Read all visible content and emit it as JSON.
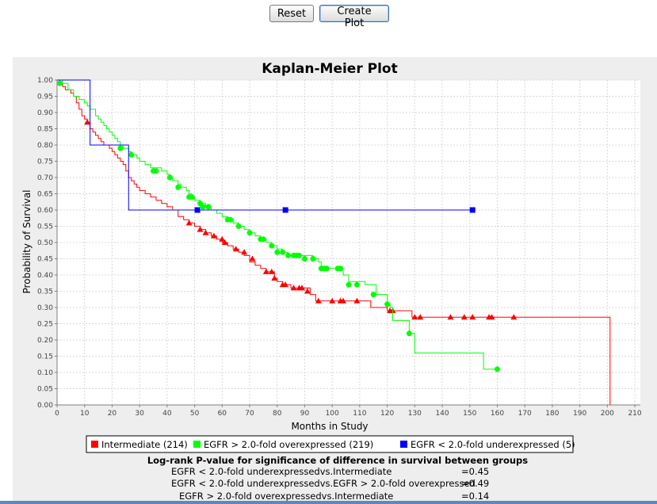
{
  "controls": {
    "reset_label": "Reset",
    "create_label": "Create Plot"
  },
  "stats": {
    "title": "Log-rank P-value for significance of difference in survival between groups",
    "rows": [
      {
        "label": "EGFR < 2.0-fold underexpressedvs.Intermediate",
        "value": "=0.45"
      },
      {
        "label": "EGFR < 2.0-fold underexpressedvs.EGFR > 2.0-fold overexpressed",
        "value": "=0.49"
      },
      {
        "label": "EGFR > 2.0-fold overexpressedvs.Intermediate",
        "value": "=0.14"
      }
    ]
  },
  "chart_data": {
    "type": "line",
    "title": "Kaplan-Meier Plot",
    "xlabel": "Months in Study",
    "ylabel": "Probability of Survival",
    "xlim": [
      0,
      212
    ],
    "ylim": [
      0,
      1.0
    ],
    "xticks": [
      0,
      10,
      20,
      30,
      40,
      50,
      60,
      70,
      80,
      90,
      100,
      110,
      120,
      130,
      140,
      150,
      160,
      170,
      180,
      190,
      200,
      210
    ],
    "yticks": [
      0,
      0.05,
      0.1,
      0.15,
      0.2,
      0.25,
      0.3,
      0.35,
      0.4,
      0.45,
      0.5,
      0.55,
      0.6,
      0.65,
      0.7,
      0.75,
      0.8,
      0.85,
      0.9,
      0.95,
      1.0
    ],
    "grid": true,
    "legend_position": "bottom",
    "series": [
      {
        "name": "Intermediate (214)",
        "color": "#ff0000",
        "marker": "triangle",
        "steps": [
          [
            0,
            1.0
          ],
          [
            1,
            0.99
          ],
          [
            2,
            0.98
          ],
          [
            3,
            0.97
          ],
          [
            5,
            0.96
          ],
          [
            6,
            0.95
          ],
          [
            7,
            0.93
          ],
          [
            8,
            0.91
          ],
          [
            9,
            0.89
          ],
          [
            10,
            0.88
          ],
          [
            11,
            0.87
          ],
          [
            12,
            0.85
          ],
          [
            13,
            0.84
          ],
          [
            14,
            0.83
          ],
          [
            15,
            0.82
          ],
          [
            16,
            0.81
          ],
          [
            17,
            0.8
          ],
          [
            19,
            0.79
          ],
          [
            20,
            0.78
          ],
          [
            21,
            0.77
          ],
          [
            22,
            0.76
          ],
          [
            23,
            0.75
          ],
          [
            24,
            0.74
          ],
          [
            25,
            0.72
          ],
          [
            26,
            0.7
          ],
          [
            27,
            0.69
          ],
          [
            28,
            0.68
          ],
          [
            29,
            0.67
          ],
          [
            30,
            0.66
          ],
          [
            32,
            0.65
          ],
          [
            34,
            0.64
          ],
          [
            36,
            0.63
          ],
          [
            38,
            0.62
          ],
          [
            40,
            0.61
          ],
          [
            42,
            0.6
          ],
          [
            44,
            0.58
          ],
          [
            46,
            0.57
          ],
          [
            48,
            0.56
          ],
          [
            50,
            0.55
          ],
          [
            52,
            0.54
          ],
          [
            54,
            0.53
          ],
          [
            56,
            0.52
          ],
          [
            58,
            0.51
          ],
          [
            60,
            0.5
          ],
          [
            62,
            0.49
          ],
          [
            64,
            0.48
          ],
          [
            66,
            0.47
          ],
          [
            68,
            0.46
          ],
          [
            70,
            0.44
          ],
          [
            72,
            0.43
          ],
          [
            74,
            0.42
          ],
          [
            76,
            0.41
          ],
          [
            79,
            0.39
          ],
          [
            80,
            0.38
          ],
          [
            82,
            0.37
          ],
          [
            85,
            0.36
          ],
          [
            88,
            0.36
          ],
          [
            92,
            0.34
          ],
          [
            94,
            0.32
          ],
          [
            100,
            0.32
          ],
          [
            112,
            0.32
          ],
          [
            114,
            0.3
          ],
          [
            118,
            0.3
          ],
          [
            120,
            0.29
          ],
          [
            129,
            0.27
          ],
          [
            170,
            0.27
          ],
          [
            200,
            0.27
          ],
          [
            201,
            0.0
          ]
        ],
        "censored": [
          [
            11,
            0.87
          ],
          [
            48,
            0.56
          ],
          [
            52,
            0.54
          ],
          [
            54,
            0.53
          ],
          [
            57,
            0.52
          ],
          [
            60,
            0.51
          ],
          [
            61,
            0.5
          ],
          [
            65,
            0.48
          ],
          [
            68,
            0.47
          ],
          [
            71,
            0.45
          ],
          [
            76,
            0.41
          ],
          [
            78,
            0.41
          ],
          [
            79,
            0.39
          ],
          [
            82,
            0.37
          ],
          [
            83,
            0.37
          ],
          [
            86,
            0.36
          ],
          [
            88,
            0.36
          ],
          [
            89,
            0.36
          ],
          [
            91,
            0.35
          ],
          [
            95,
            0.32
          ],
          [
            100,
            0.32
          ],
          [
            103,
            0.32
          ],
          [
            104,
            0.32
          ],
          [
            109,
            0.32
          ],
          [
            121,
            0.29
          ],
          [
            122,
            0.29
          ],
          [
            130,
            0.27
          ],
          [
            132,
            0.27
          ],
          [
            143,
            0.27
          ],
          [
            148,
            0.27
          ],
          [
            151,
            0.27
          ],
          [
            157,
            0.27
          ],
          [
            158,
            0.27
          ],
          [
            166,
            0.27
          ]
        ]
      },
      {
        "name": "EGFR > 2.0-fold overexpressed (219)",
        "color": "#00ff00",
        "marker": "circle",
        "steps": [
          [
            0,
            1.0
          ],
          [
            2,
            0.99
          ],
          [
            4,
            0.97
          ],
          [
            6,
            0.95
          ],
          [
            8,
            0.94
          ],
          [
            10,
            0.93
          ],
          [
            11,
            0.92
          ],
          [
            12,
            0.91
          ],
          [
            14,
            0.89
          ],
          [
            15,
            0.88
          ],
          [
            16,
            0.87
          ],
          [
            17,
            0.86
          ],
          [
            18,
            0.85
          ],
          [
            19,
            0.84
          ],
          [
            20,
            0.83
          ],
          [
            21,
            0.82
          ],
          [
            22,
            0.81
          ],
          [
            23,
            0.8
          ],
          [
            24,
            0.79
          ],
          [
            26,
            0.78
          ],
          [
            27,
            0.77
          ],
          [
            29,
            0.76
          ],
          [
            30,
            0.75
          ],
          [
            32,
            0.74
          ],
          [
            34,
            0.73
          ],
          [
            38,
            0.72
          ],
          [
            40,
            0.71
          ],
          [
            41,
            0.7
          ],
          [
            42,
            0.69
          ],
          [
            44,
            0.68
          ],
          [
            45,
            0.67
          ],
          [
            47,
            0.66
          ],
          [
            48,
            0.65
          ],
          [
            49,
            0.64
          ],
          [
            50,
            0.63
          ],
          [
            52,
            0.62
          ],
          [
            54,
            0.61
          ],
          [
            56,
            0.6
          ],
          [
            58,
            0.59
          ],
          [
            60,
            0.58
          ],
          [
            62,
            0.57
          ],
          [
            64,
            0.56
          ],
          [
            66,
            0.55
          ],
          [
            68,
            0.54
          ],
          [
            70,
            0.53
          ],
          [
            72,
            0.52
          ],
          [
            74,
            0.51
          ],
          [
            76,
            0.5
          ],
          [
            78,
            0.49
          ],
          [
            80,
            0.48
          ],
          [
            82,
            0.47
          ],
          [
            84,
            0.46
          ],
          [
            93,
            0.45
          ],
          [
            95,
            0.44
          ],
          [
            96,
            0.42
          ],
          [
            102,
            0.42
          ],
          [
            104,
            0.4
          ],
          [
            106,
            0.38
          ],
          [
            112,
            0.37
          ],
          [
            116,
            0.34
          ],
          [
            120,
            0.31
          ],
          [
            121,
            0.3
          ],
          [
            122,
            0.26
          ],
          [
            126,
            0.26
          ],
          [
            128,
            0.22
          ],
          [
            130,
            0.16
          ],
          [
            151,
            0.16
          ],
          [
            155,
            0.11
          ],
          [
            160,
            0.11
          ]
        ],
        "censored": [
          [
            1,
            0.99
          ],
          [
            23,
            0.79
          ],
          [
            27,
            0.77
          ],
          [
            35,
            0.72
          ],
          [
            36,
            0.72
          ],
          [
            41,
            0.7
          ],
          [
            44,
            0.67
          ],
          [
            48,
            0.64
          ],
          [
            49,
            0.64
          ],
          [
            52,
            0.62
          ],
          [
            53,
            0.61
          ],
          [
            55,
            0.61
          ],
          [
            62,
            0.57
          ],
          [
            63,
            0.57
          ],
          [
            66,
            0.55
          ],
          [
            70,
            0.53
          ],
          [
            74,
            0.51
          ],
          [
            75,
            0.51
          ],
          [
            78,
            0.49
          ],
          [
            80,
            0.47
          ],
          [
            82,
            0.47
          ],
          [
            84,
            0.46
          ],
          [
            86,
            0.46
          ],
          [
            87,
            0.46
          ],
          [
            88,
            0.46
          ],
          [
            90,
            0.45
          ],
          [
            93,
            0.45
          ],
          [
            96,
            0.42
          ],
          [
            97,
            0.42
          ],
          [
            98,
            0.42
          ],
          [
            102,
            0.42
          ],
          [
            103,
            0.42
          ],
          [
            106,
            0.37
          ],
          [
            109,
            0.37
          ],
          [
            115,
            0.34
          ],
          [
            120,
            0.31
          ],
          [
            128,
            0.22
          ],
          [
            160,
            0.11
          ]
        ]
      },
      {
        "name": "EGFR < 2.0-fold underexpressed (5)",
        "color": "#0000ff",
        "marker": "square",
        "steps": [
          [
            0,
            1.0
          ],
          [
            12,
            1.0
          ],
          [
            12,
            0.8
          ],
          [
            26,
            0.8
          ],
          [
            26,
            0.6
          ],
          [
            151,
            0.6
          ]
        ],
        "censored": [
          [
            51,
            0.6
          ],
          [
            83,
            0.6
          ],
          [
            151,
            0.6
          ]
        ]
      }
    ]
  }
}
